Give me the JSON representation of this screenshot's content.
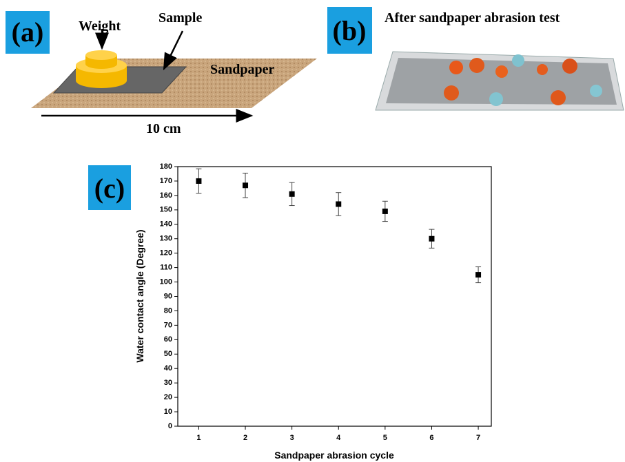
{
  "panel_a": {
    "label": "(a)",
    "weight": "Weight",
    "sample": "Sample",
    "sandpaper": "Sandpaper",
    "scale": "10 cm"
  },
  "panel_b": {
    "label": "(b)",
    "title": "After sandpaper abrasion test"
  },
  "chart_data": {
    "type": "scatter",
    "panel_label": "(c)",
    "x_label": "Sandpaper abrasion cycle",
    "y_label": "Water contact angle (Degree)",
    "x": [
      1,
      2,
      3,
      4,
      5,
      6,
      7
    ],
    "values": [
      170,
      167,
      161,
      154,
      149,
      130,
      105
    ],
    "errors": [
      8.5,
      8.5,
      8,
      8,
      7,
      6.5,
      5.5
    ],
    "color": "#000000",
    "xlim": [
      0.55,
      7.28
    ],
    "xticks": [
      1,
      2,
      3,
      4,
      5,
      6,
      7
    ],
    "ylim": [
      0,
      180
    ],
    "yticks": [
      0,
      10,
      20,
      30,
      40,
      50,
      60,
      70,
      80,
      90,
      100,
      110,
      120,
      130,
      140,
      150,
      160,
      170,
      180
    ]
  }
}
